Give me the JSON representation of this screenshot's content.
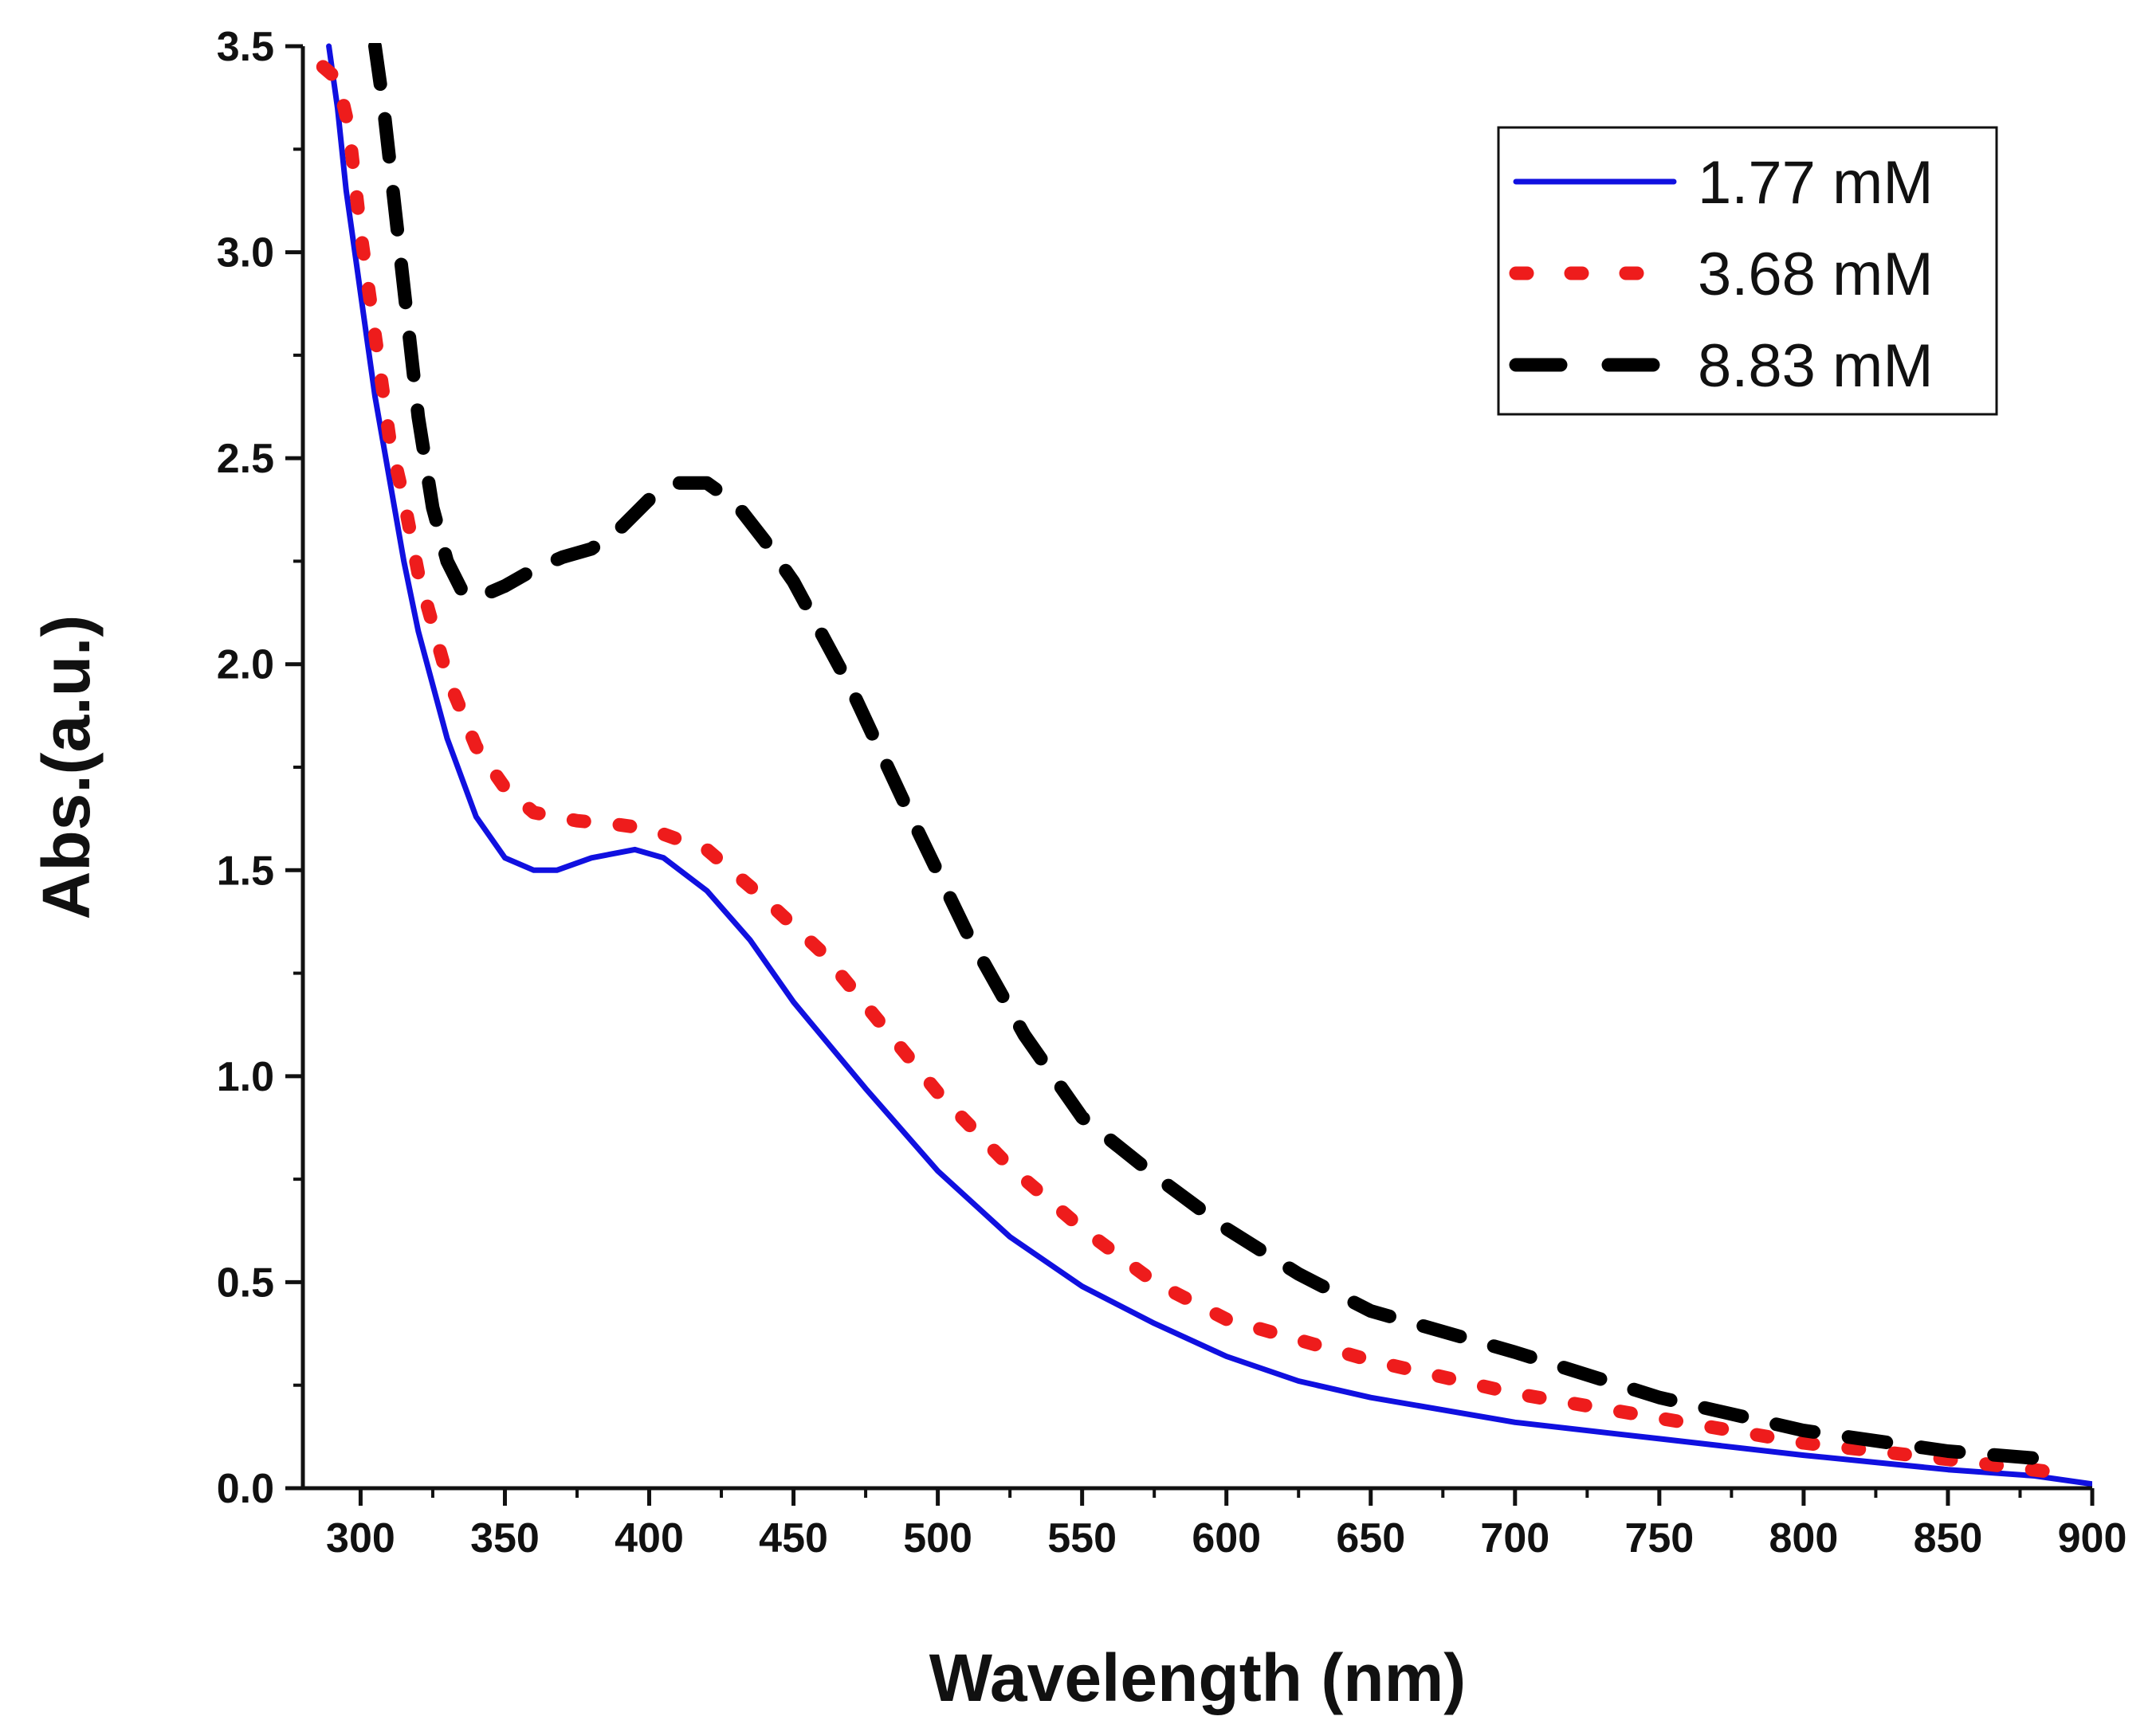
{
  "chart_data": {
    "type": "line",
    "title": "",
    "xlabel": "Wavelength (nm)",
    "ylabel": "Abs.(a.u.)",
    "xlim": [
      280,
      900
    ],
    "ylim": [
      0,
      3.5
    ],
    "x_ticks": [
      300,
      350,
      400,
      450,
      500,
      550,
      600,
      650,
      700,
      750,
      800,
      850,
      900
    ],
    "y_ticks": [
      "0.0",
      "0.5",
      "1.0",
      "1.5",
      "2.0",
      "2.5",
      "3.0",
      "3.5"
    ],
    "grid": false,
    "legend_position": "top-right",
    "series": [
      {
        "name": "1.77 mM",
        "color": "#1010e0",
        "style": "solid",
        "x": [
          289,
          292,
          295,
          298,
          301,
          305,
          310,
          315,
          320,
          330,
          340,
          350,
          360,
          368,
          380,
          395,
          405,
          420,
          435,
          450,
          475,
          500,
          525,
          550,
          575,
          600,
          625,
          650,
          700,
          750,
          800,
          850,
          880,
          900
        ],
        "y": [
          3.5,
          3.35,
          3.15,
          3.0,
          2.85,
          2.65,
          2.45,
          2.25,
          2.08,
          1.82,
          1.63,
          1.53,
          1.5,
          1.5,
          1.53,
          1.55,
          1.53,
          1.45,
          1.33,
          1.18,
          0.97,
          0.77,
          0.61,
          0.49,
          0.4,
          0.32,
          0.26,
          0.22,
          0.16,
          0.12,
          0.08,
          0.045,
          0.03,
          0.01
        ]
      },
      {
        "name": "3.68 mM",
        "color": "#ee1c1c",
        "style": "dotted",
        "x": [
          287,
          292,
          296,
          300,
          305,
          310,
          315,
          320,
          330,
          340,
          350,
          360,
          375,
          390,
          400,
          420,
          440,
          460,
          480,
          500,
          525,
          550,
          575,
          600,
          625,
          650,
          700,
          750,
          800,
          850,
          885
        ],
        "y": [
          3.45,
          3.42,
          3.3,
          3.05,
          2.8,
          2.55,
          2.4,
          2.22,
          1.97,
          1.8,
          1.7,
          1.64,
          1.62,
          1.61,
          1.6,
          1.55,
          1.43,
          1.3,
          1.13,
          0.96,
          0.78,
          0.63,
          0.5,
          0.41,
          0.36,
          0.31,
          0.23,
          0.17,
          0.11,
          0.07,
          0.04
        ]
      },
      {
        "name": "8.83 mM",
        "color": "#000000",
        "style": "dashed",
        "x": [
          305,
          308,
          312,
          316,
          320,
          325,
          330,
          335,
          340,
          350,
          360,
          370,
          380,
          390,
          400,
          410,
          420,
          430,
          440,
          450,
          470,
          490,
          510,
          530,
          550,
          575,
          600,
          625,
          650,
          700,
          750,
          800,
          850,
          885
        ],
        "y": [
          3.5,
          3.35,
          3.1,
          2.85,
          2.6,
          2.38,
          2.25,
          2.18,
          2.16,
          2.19,
          2.23,
          2.26,
          2.28,
          2.33,
          2.4,
          2.44,
          2.44,
          2.39,
          2.3,
          2.2,
          1.94,
          1.64,
          1.35,
          1.1,
          0.9,
          0.76,
          0.63,
          0.52,
          0.43,
          0.33,
          0.22,
          0.14,
          0.09,
          0.07
        ]
      }
    ]
  }
}
